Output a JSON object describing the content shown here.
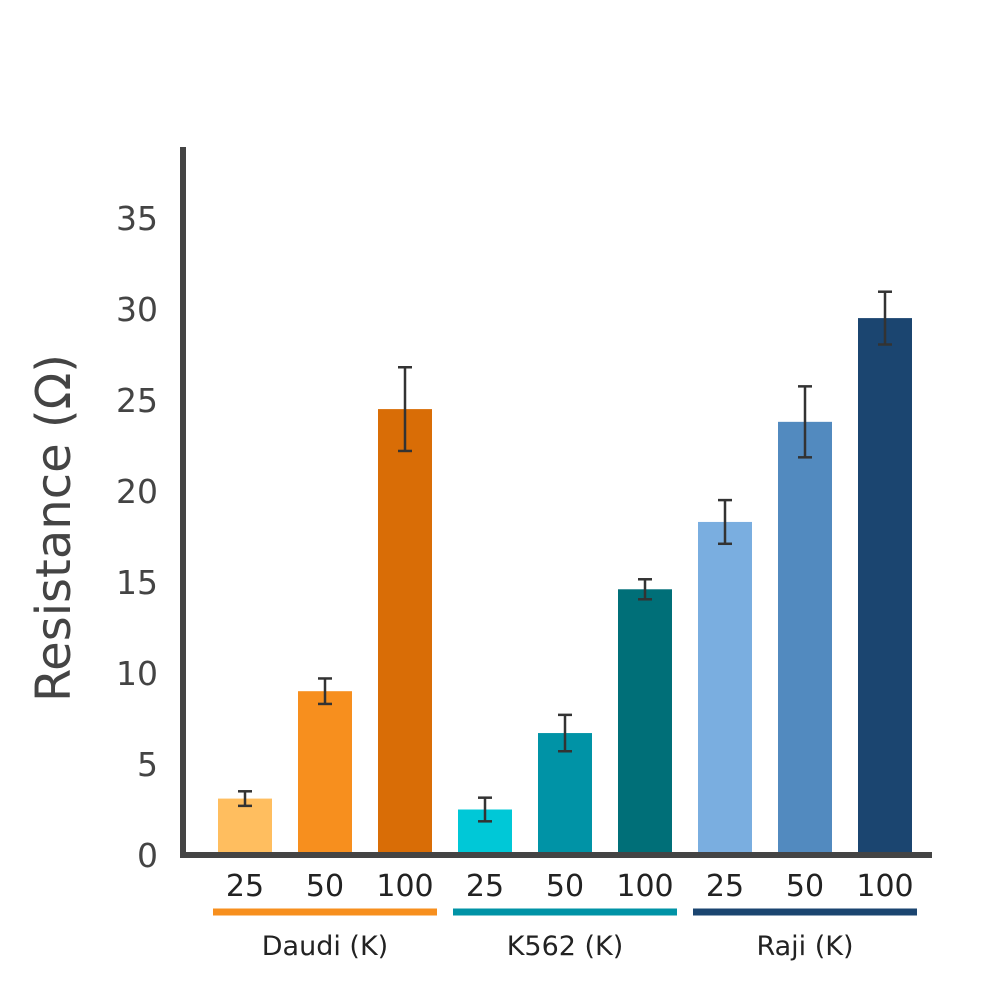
{
  "chart_data": {
    "type": "bar",
    "title": "",
    "ylabel": "Resistance (Ω)",
    "xlabel": "",
    "ylim": [
      0,
      38
    ],
    "yticks": [
      "0",
      "5",
      "10",
      "15",
      "20",
      "25",
      "30",
      "35"
    ],
    "grid": false,
    "legend": "none",
    "bars": [
      {
        "group": "Daudi (K)",
        "label": "25",
        "value": 3.1,
        "error": 0.4,
        "color": "#FFBE5F"
      },
      {
        "group": "Daudi (K)",
        "label": "50",
        "value": 9.0,
        "error": 0.7,
        "color": "#F78F1E"
      },
      {
        "group": "Daudi (K)",
        "label": "100",
        "value": 24.5,
        "error": 2.3,
        "color": "#D96D06"
      },
      {
        "group": "K562 (K)",
        "label": "25",
        "value": 2.5,
        "error": 0.65,
        "color": "#00C8D7"
      },
      {
        "group": "K562 (K)",
        "label": "50",
        "value": 6.7,
        "error": 1.0,
        "color": "#0093A6"
      },
      {
        "group": "K562 (K)",
        "label": "100",
        "value": 14.6,
        "error": 0.55,
        "color": "#006F78"
      },
      {
        "group": "Raji (K)",
        "label": "25",
        "value": 18.3,
        "error": 1.2,
        "color": "#7AAEE0"
      },
      {
        "group": "Raji (K)",
        "label": "50",
        "value": 23.8,
        "error": 1.95,
        "color": "#528ABF"
      },
      {
        "group": "Raji (K)",
        "label": "100",
        "value": 29.5,
        "error": 1.45,
        "color": "#1B4570"
      }
    ],
    "groups": [
      {
        "name": "Daudi (K)",
        "color": "#F78F1E"
      },
      {
        "name": "K562 (K)",
        "color": "#0093A6"
      },
      {
        "name": "Raji (K)",
        "color": "#1B4570"
      }
    ]
  }
}
